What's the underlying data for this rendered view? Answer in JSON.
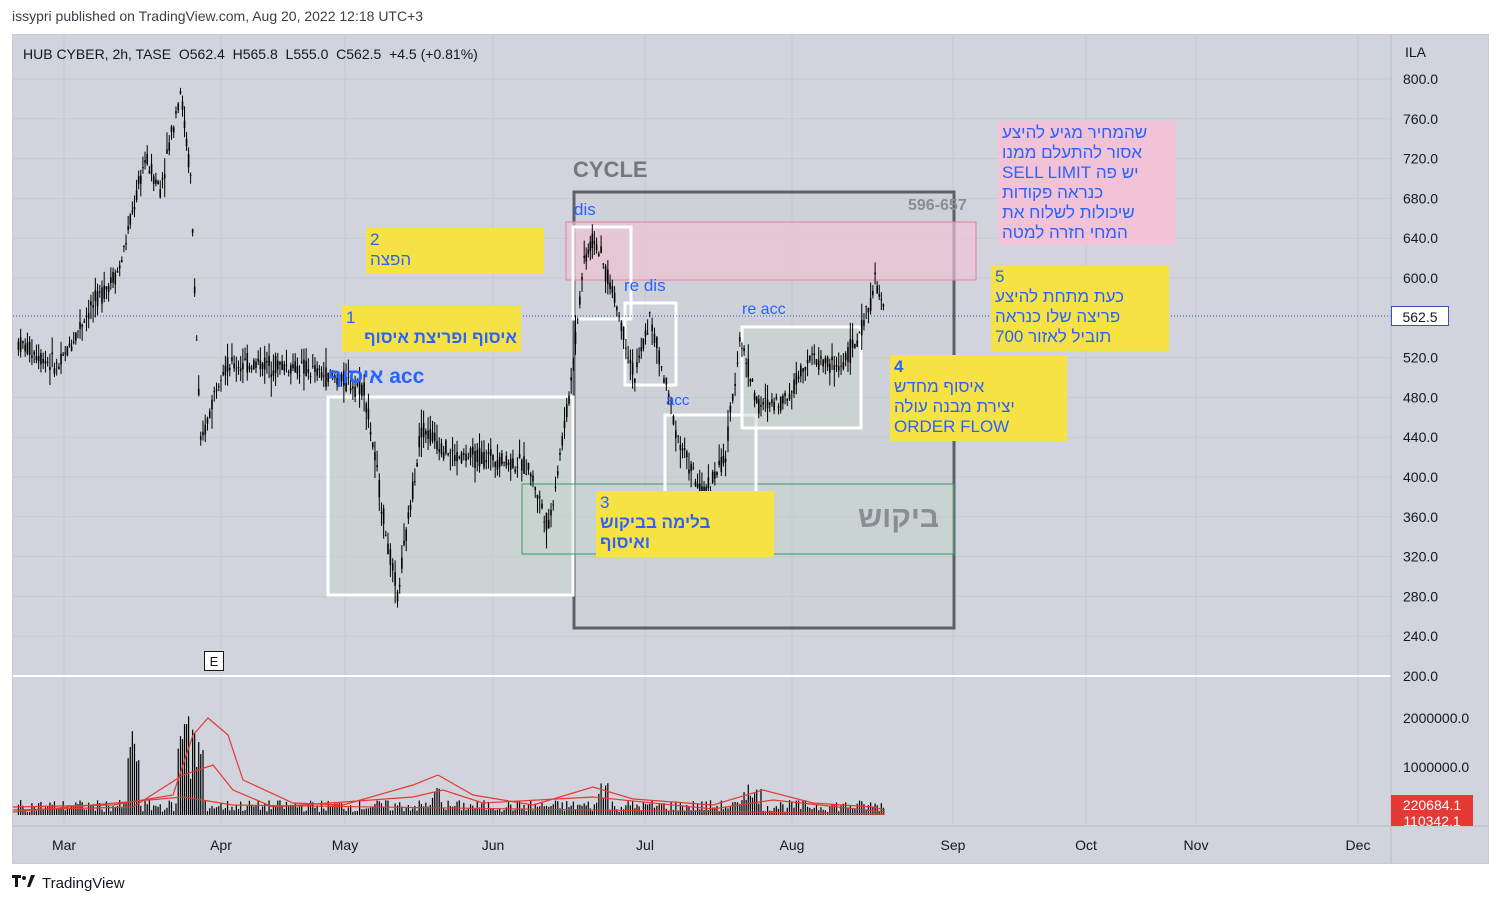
{
  "header": {
    "published": "issypri published on TradingView.com, Aug 20, 2022 12:18 UTC+3"
  },
  "legend": {
    "symbol": "HUB CYBER, 2h, TASE",
    "open": "O562.4",
    "high": "H565.8",
    "low": "L555.0",
    "close": "C562.5",
    "change": "+4.5 (+0.81%)"
  },
  "axis": {
    "currency": "ILA",
    "price_ticks": [
      "800.0",
      "760.0",
      "720.0",
      "680.0",
      "640.0",
      "600.0",
      "520.0",
      "480.0",
      "440.0",
      "400.0",
      "360.0",
      "320.0",
      "280.0",
      "240.0",
      "200.0"
    ],
    "current_price": "562.5",
    "volume_ticks": [
      "2000000.0",
      "1000000.0"
    ],
    "volume_badge_1": "220684.1",
    "volume_badge_2": "110342.1",
    "months": [
      "Mar",
      "Apr",
      "May",
      "Jun",
      "Jul",
      "Aug",
      "Sep",
      "Oct",
      "Nov",
      "Dec"
    ]
  },
  "earnings_marker": "E",
  "labels": {
    "cycle": "CYCLE",
    "range": "596-657",
    "dis": "dis",
    "re_dis": "re dis",
    "acc": "acc",
    "re_acc": "re acc",
    "acc_hebrew": "איסוף acc",
    "demand": "ביקוש"
  },
  "notes": {
    "n1_num": "1",
    "n1_text": "איסוף ופריצת  איסוף",
    "n2_num": "2",
    "n2_text": "הפצה",
    "n3_num": "3",
    "n3_line1": "בלימה בביקוש",
    "n3_line2": "ואיסוף",
    "n4_num": "4",
    "n4_line1": "איסוף מחדש",
    "n4_line2": "יצירת מבנה עולה",
    "n4_line3": "ORDER FLOW",
    "n5_num": "5",
    "n5_line1": "כעת מתחת להיצע",
    "n5_line2": "פריצה שלו כנראה",
    "n5_line3": "תוביל לאזור 700",
    "pink_line1": "שהמחיר מגיע להיצע",
    "pink_line2": "אסור להתעלם ממנו",
    "pink_line3": "יש פה SELL LIMIT",
    "pink_line4": "כנראה פקודות",
    "pink_line5": "שיכולות לשלוח את",
    "pink_line6": "המחי חזרה למטה"
  },
  "footer": {
    "brand": "TradingView"
  },
  "colors": {
    "background": "#d1d4dc",
    "candle": "#000000",
    "note_bg": "#f7e244",
    "note_text": "#2962ff",
    "supply_zone": "#f2c2d6",
    "volume_ma": "#e53935"
  },
  "chart_data": {
    "type": "candlestick",
    "symbol": "HUB CYBER",
    "interval": "2h",
    "exchange": "TASE",
    "ylim": [
      200,
      820
    ],
    "current_price": 562.5,
    "price_path": [
      {
        "x": "Feb 20",
        "y": 535
      },
      {
        "x": "Feb 28",
        "y": 510
      },
      {
        "x": "Mar 05",
        "y": 560
      },
      {
        "x": "Mar 12",
        "y": 610
      },
      {
        "x": "Mar 17",
        "y": 720
      },
      {
        "x": "Mar 20",
        "y": 690
      },
      {
        "x": "Mar 24",
        "y": 790
      },
      {
        "x": "Mar 26",
        "y": 700
      },
      {
        "x": "Mar 28",
        "y": 430
      },
      {
        "x": "Apr 01",
        "y": 510
      },
      {
        "x": "Apr 10",
        "y": 515
      },
      {
        "x": "Apr 20",
        "y": 510
      },
      {
        "x": "Apr 28",
        "y": 500
      },
      {
        "x": "May 05",
        "y": 490
      },
      {
        "x": "May 10",
        "y": 330
      },
      {
        "x": "May 12",
        "y": 280
      },
      {
        "x": "May 17",
        "y": 450
      },
      {
        "x": "May 24",
        "y": 420
      },
      {
        "x": "Jun 01",
        "y": 420
      },
      {
        "x": "Jun 08",
        "y": 410
      },
      {
        "x": "Jun 12",
        "y": 350
      },
      {
        "x": "Jun 16",
        "y": 480
      },
      {
        "x": "Jun 19",
        "y": 620
      },
      {
        "x": "Jun 21",
        "y": 640
      },
      {
        "x": "Jun 25",
        "y": 580
      },
      {
        "x": "Jun 29",
        "y": 500
      },
      {
        "x": "Jul 02",
        "y": 560
      },
      {
        "x": "Jul 05",
        "y": 500
      },
      {
        "x": "Jul 08",
        "y": 440
      },
      {
        "x": "Jul 13",
        "y": 380
      },
      {
        "x": "Jul 18",
        "y": 420
      },
      {
        "x": "Jul 21",
        "y": 540
      },
      {
        "x": "Jul 25",
        "y": 470
      },
      {
        "x": "Jul 31",
        "y": 480
      },
      {
        "x": "Aug 04",
        "y": 520
      },
      {
        "x": "Aug 10",
        "y": 510
      },
      {
        "x": "Aug 14",
        "y": 540
      },
      {
        "x": "Aug 17",
        "y": 595
      },
      {
        "x": "Aug 19",
        "y": 562.5
      }
    ],
    "zones": [
      {
        "name": "supply",
        "range": [
          596,
          657
        ]
      },
      {
        "name": "demand",
        "range": [
          320,
          395
        ]
      }
    ]
  }
}
